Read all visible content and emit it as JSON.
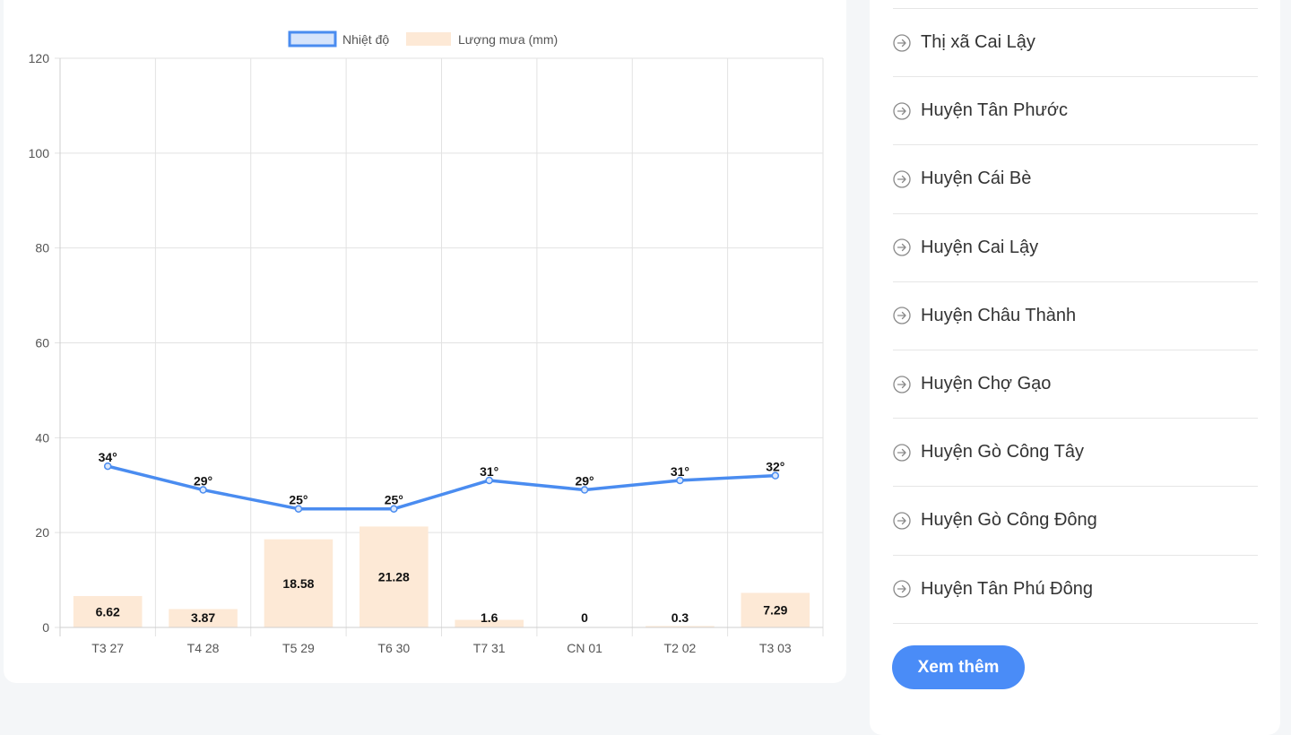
{
  "chart_data": {
    "type": "bar+line",
    "categories": [
      "T3 27",
      "T4 28",
      "T5 29",
      "T6 30",
      "T7 31",
      "CN 01",
      "T2 02",
      "T3 03"
    ],
    "series": [
      {
        "name": "Nhiệt độ",
        "type": "line",
        "values": [
          34,
          29,
          25,
          25,
          31,
          29,
          31,
          32
        ],
        "labels": [
          "34°",
          "29°",
          "25°",
          "25°",
          "31°",
          "29°",
          "31°",
          "32°"
        ],
        "color": "#4a8cf0"
      },
      {
        "name": "Lượng mưa (mm)",
        "type": "bar",
        "values": [
          6.62,
          3.87,
          18.58,
          21.28,
          1.6,
          0,
          0.3,
          7.29
        ],
        "labels": [
          "6.62",
          "3.87",
          "18.58",
          "21.28",
          "1.6",
          "0",
          "0.3",
          "7.29"
        ],
        "color": "#fde9d6"
      }
    ],
    "ylim": [
      0,
      120
    ],
    "yticks": [
      "0",
      "20",
      "40",
      "60",
      "80",
      "100",
      "120"
    ],
    "grid": true,
    "legend": "top-center"
  },
  "sidebar": {
    "districts": [
      "Thị xã Cai Lậy",
      "Huyện Tân Phước",
      "Huyện Cái Bè",
      "Huyện Cai Lậy",
      "Huyện Châu Thành",
      "Huyện Chợ Gạo",
      "Huyện Gò Công Tây",
      "Huyện Gò Công Đông",
      "Huyện Tân Phú Đông"
    ],
    "more_label": "Xem thêm"
  }
}
